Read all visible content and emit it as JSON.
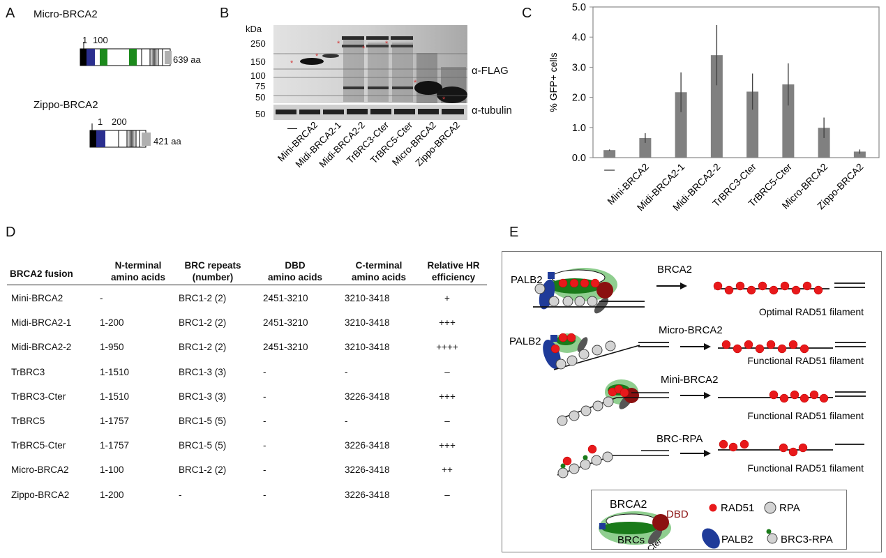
{
  "panels": {
    "a": "A",
    "b": "B",
    "c": "C",
    "d": "D",
    "e": "E"
  },
  "panelA": {
    "micro": {
      "title": "Micro-BRCA2",
      "tick1": "1",
      "tick2": "100",
      "length": "639 aa"
    },
    "zippo": {
      "title": "Zippo-BRCA2",
      "tick1": "1",
      "tick2": "200",
      "length": "421 aa"
    }
  },
  "panelB": {
    "kda_label": "kDa",
    "markers_top": [
      "250",
      "150",
      "100",
      "75",
      "50"
    ],
    "marker_bottom": "50",
    "flag_label": "α-FLAG",
    "tubulin_label": "α-tubulin",
    "lanes": [
      "—",
      "Mini-BRCA2",
      "Midi-BRCA2-1",
      "Midi-BRCA2-2",
      "TrBRC3-Cter",
      "TrBRC5-Cter",
      "Micro-BRCA2",
      "Zippo-BRCA2"
    ]
  },
  "chart_data": {
    "type": "bar",
    "ylabel": "% GFP+ cells",
    "ylim": [
      0,
      5
    ],
    "yticks": [
      "0.0",
      "1.0",
      "2.0",
      "3.0",
      "4.0",
      "5.0"
    ],
    "categories": [
      "—",
      "Mini-BRCA2",
      "Midi-BRCA2-1",
      "Midi-BRCA2-2",
      "TrBRC3-Cter",
      "TrBRC5-Cter",
      "Micro-BRCA2",
      "Zippo-BRCA2"
    ],
    "values": [
      0.25,
      0.65,
      2.17,
      3.4,
      2.19,
      2.43,
      0.99,
      0.2
    ],
    "errors": [
      0.02,
      0.16,
      0.66,
      1.0,
      0.6,
      0.7,
      0.34,
      0.07
    ],
    "bar_color": "#808080"
  },
  "table": {
    "headers": [
      [
        "BRCA2 fusion",
        ""
      ],
      [
        "N-terminal",
        "amino acids"
      ],
      [
        "BRC repeats",
        "(number)"
      ],
      [
        "DBD",
        "amino acids"
      ],
      [
        "C-terminal",
        "amino acids"
      ],
      [
        "Relative HR",
        "efficiency"
      ]
    ],
    "rows": [
      [
        "Mini-BRCA2",
        "-",
        "BRC1-2 (2)",
        "2451-3210",
        "3210-3418",
        "+"
      ],
      [
        "Midi-BRCA2-1",
        "1-200",
        "BRC1-2 (2)",
        "2451-3210",
        "3210-3418",
        "+++"
      ],
      [
        "Midi-BRCA2-2",
        "1-950",
        "BRC1-2 (2)",
        "2451-3210",
        "3210-3418",
        "++++"
      ],
      [
        "TrBRC3",
        "1-1510",
        "BRC1-3 (3)",
        "-",
        "-",
        "–"
      ],
      [
        "TrBRC3-Cter",
        "1-1510",
        "BRC1-3 (3)",
        "-",
        "3226-3418",
        "+++"
      ],
      [
        "TrBRC5",
        "1-1757",
        "BRC1-5 (5)",
        "-",
        "-",
        "–"
      ],
      [
        "TrBRC5-Cter",
        "1-1757",
        "BRC1-5 (5)",
        "-",
        "3226-3418",
        "+++"
      ],
      [
        "Micro-BRCA2",
        "1-100",
        "BRC1-2 (2)",
        "-",
        "3226-3418",
        "++"
      ],
      [
        "Zippo-BRCA2",
        "1-200",
        "-",
        "-",
        "3226-3418",
        "–"
      ]
    ]
  },
  "panelE": {
    "rows": [
      {
        "left_label": "PALB2",
        "arrow_label": "BRCA2",
        "result": "Optimal RAD51 filament"
      },
      {
        "left_label": "PALB2",
        "arrow_label": "Micro-BRCA2",
        "result": "Functional RAD51 filament"
      },
      {
        "left_label": "",
        "arrow_label": "Mini-BRCA2",
        "result": "Functional RAD51 filament"
      },
      {
        "left_label": "",
        "arrow_label": "BRC-RPA",
        "result": "Functional RAD51 filament"
      }
    ],
    "legend": {
      "brca2": "BRCA2",
      "dbd": "DBD",
      "brcs": "BRCs",
      "cter": "Cter",
      "rad51": "RAD51",
      "rpa": "RPA",
      "palb2": "PALB2",
      "brc3rpa": "BRC3-RPA"
    },
    "colors": {
      "rad51": "#e8191b",
      "rpa": "#d3d3d3",
      "palb2": "#1f3b99",
      "brc": "#1a7a1a",
      "dbd": "#8b1010",
      "halo": "#8fce8f",
      "cter": "#555555"
    }
  }
}
